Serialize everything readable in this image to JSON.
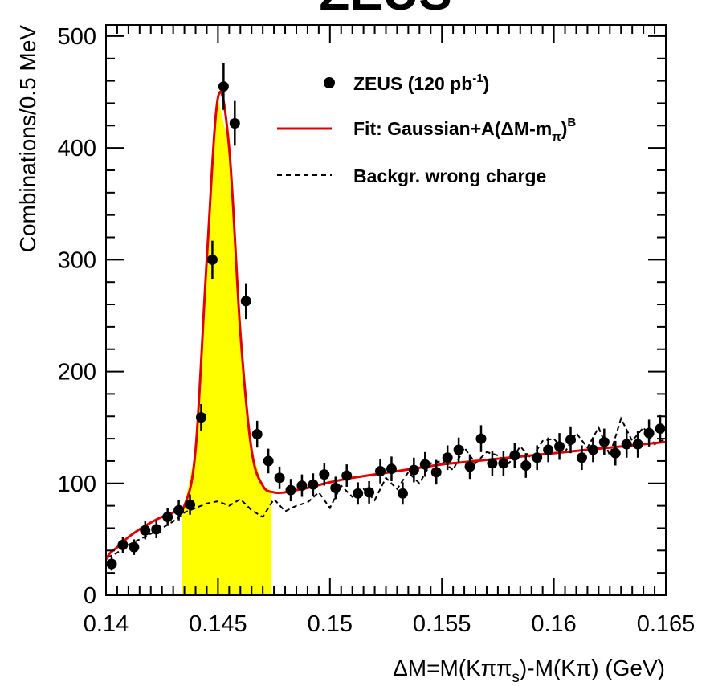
{
  "chart_data": {
    "type": "scatter",
    "title": "ZEUS",
    "xlabel": "ΔM=M(Kππ_s)-M(Kπ) (GeV)",
    "ylabel": "Combinations/0.5 MeV",
    "xlim": [
      0.14,
      0.165
    ],
    "ylim": [
      0,
      510
    ],
    "x_ticks": [
      "0.14",
      "0.145",
      "0.15",
      "0.155",
      "0.16",
      "0.165"
    ],
    "y_ticks": [
      "0",
      "100",
      "200",
      "300",
      "400",
      "500"
    ],
    "signal_window": [
      0.1434,
      0.1474
    ],
    "legend": {
      "placement": "top-right",
      "entries": [
        {
          "label": "ZEUS (120 pb-1)",
          "style": "marker"
        },
        {
          "label": "Fit: Gaussian+A(ΔM-mπ)B",
          "style": "solid-red"
        },
        {
          "label": "Backgr. wrong charge",
          "style": "dashed"
        }
      ]
    },
    "series": [
      {
        "name": "ZEUS (120 pb-1)",
        "x": [
          0.14025,
          0.14075,
          0.14125,
          0.14175,
          0.14225,
          0.14275,
          0.14325,
          0.14375,
          0.14425,
          0.14475,
          0.14525,
          0.14575,
          0.14625,
          0.14675,
          0.14725,
          0.14775,
          0.14825,
          0.14875,
          0.14925,
          0.14975,
          0.15025,
          0.15075,
          0.15125,
          0.15175,
          0.15225,
          0.15275,
          0.15325,
          0.15375,
          0.15425,
          0.15475,
          0.15525,
          0.15575,
          0.15625,
          0.15675,
          0.15725,
          0.15775,
          0.15825,
          0.15875,
          0.15925,
          0.15975,
          0.16025,
          0.16075,
          0.16125,
          0.16175,
          0.16225,
          0.16275,
          0.16325,
          0.16375,
          0.16425,
          0.16475
        ],
        "y": [
          28,
          45,
          43,
          58,
          59,
          70,
          76,
          81,
          159,
          300,
          455,
          422,
          263,
          144,
          120,
          105,
          94,
          98,
          99,
          108,
          96,
          107,
          91,
          92,
          111,
          113,
          91,
          112,
          117,
          110,
          123,
          130,
          115,
          140,
          118,
          118,
          125,
          116,
          123,
          130,
          133,
          139,
          123,
          130,
          137,
          127,
          135,
          135,
          145,
          149
        ],
        "yerr": [
          6,
          7,
          7,
          8,
          8,
          8,
          9,
          9,
          12,
          17,
          21,
          20,
          16,
          12,
          11,
          10,
          10,
          10,
          10,
          10,
          10,
          10,
          10,
          10,
          11,
          11,
          10,
          11,
          11,
          11,
          11,
          11,
          11,
          12,
          11,
          11,
          11,
          11,
          11,
          11,
          12,
          12,
          11,
          11,
          12,
          11,
          12,
          12,
          12,
          12
        ]
      },
      {
        "name": "Fit: Gaussian+A(ΔM-mπ)B",
        "x": [
          0.1395,
          0.14,
          0.1405,
          0.141,
          0.1415,
          0.142,
          0.1425,
          0.143,
          0.1435,
          0.144,
          0.1445,
          0.145,
          0.1455,
          0.146,
          0.1465,
          0.147,
          0.1475,
          0.148,
          0.1485,
          0.149,
          0.15,
          0.151,
          0.152,
          0.153,
          0.154,
          0.155,
          0.156,
          0.157,
          0.158,
          0.159,
          0.16,
          0.161,
          0.162,
          0.163,
          0.164,
          0.165
        ],
        "y": [
          0,
          32,
          43,
          52,
          59,
          65,
          70,
          74,
          80,
          130,
          300,
          445,
          400,
          235,
          130,
          98,
          92,
          92,
          94,
          96,
          101,
          105,
          108,
          111,
          114,
          117,
          119,
          121,
          123,
          125,
          127,
          129,
          131,
          133,
          135,
          137
        ]
      },
      {
        "name": "Backgr. wrong charge",
        "x": [
          0.1395,
          0.14,
          0.1405,
          0.141,
          0.1415,
          0.142,
          0.1425,
          0.143,
          0.1435,
          0.144,
          0.1445,
          0.145,
          0.1455,
          0.146,
          0.1465,
          0.147,
          0.1475,
          0.148,
          0.1485,
          0.149,
          0.1495,
          0.15,
          0.1505,
          0.151,
          0.1515,
          0.152,
          0.1525,
          0.153,
          0.1535,
          0.154,
          0.1545,
          0.155,
          0.1555,
          0.156,
          0.1565,
          0.157,
          0.1575,
          0.158,
          0.1585,
          0.159,
          0.1595,
          0.16,
          0.1605,
          0.161,
          0.1615,
          0.162,
          0.1625,
          0.163,
          0.1635,
          0.164,
          0.1645,
          0.165
        ],
        "y": [
          0,
          33,
          38,
          45,
          50,
          55,
          60,
          66,
          74,
          78,
          82,
          84,
          80,
          86,
          76,
          70,
          86,
          75,
          80,
          83,
          92,
          78,
          98,
          88,
          95,
          85,
          105,
          95,
          110,
          100,
          118,
          120,
          112,
          132,
          118,
          128,
          125,
          118,
          133,
          122,
          138,
          140,
          128,
          145,
          132,
          150,
          125,
          158,
          138,
          150,
          135,
          140
        ]
      }
    ]
  }
}
